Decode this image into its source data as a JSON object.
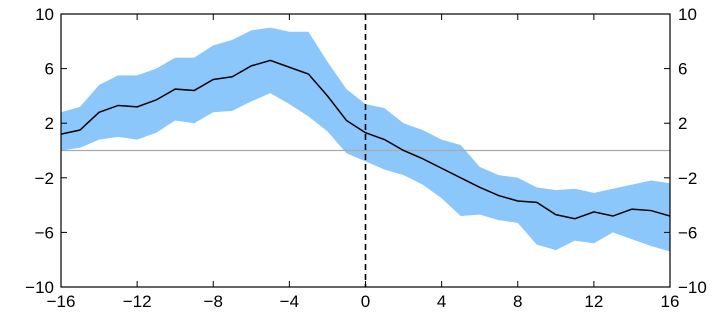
{
  "chart_data": {
    "type": "line",
    "title": "",
    "xlabel": "",
    "ylabel": "",
    "xlim": [
      -16,
      16
    ],
    "ylim": [
      -10,
      10
    ],
    "x_ticks": [
      -16,
      -12,
      -8,
      -4,
      0,
      4,
      8,
      12,
      16
    ],
    "x_tick_labels": [
      "−16",
      "−12",
      "−8",
      "−4",
      "0",
      "4",
      "8",
      "12",
      "16"
    ],
    "y_ticks": [
      10,
      6,
      2,
      -2,
      -6,
      -10
    ],
    "y_tick_labels": [
      "10",
      "6",
      "2",
      "−2",
      "−6",
      "−10"
    ],
    "right_axis_labels": true,
    "grid": false,
    "reference_lines": {
      "horizontal_zero": true,
      "vertical_dashed_at_x": 0
    },
    "x": [
      -16,
      -15,
      -14,
      -13,
      -12,
      -11,
      -10,
      -9,
      -8,
      -7,
      -6,
      -5,
      -4,
      -3,
      -2,
      -1,
      0,
      1,
      2,
      3,
      4,
      5,
      6,
      7,
      8,
      9,
      10,
      11,
      12,
      13,
      14,
      15,
      16
    ],
    "series": [
      {
        "role": "central estimate",
        "color": "#000000",
        "values": [
          1.2,
          1.5,
          2.8,
          3.3,
          3.2,
          3.7,
          4.5,
          4.4,
          5.2,
          5.4,
          6.2,
          6.6,
          6.1,
          5.6,
          4.0,
          2.2,
          1.3,
          0.8,
          0.0,
          -0.6,
          -1.3,
          -2.0,
          -2.7,
          -3.3,
          -3.7,
          -3.8,
          -4.7,
          -5.0,
          -4.5,
          -4.8,
          -4.3,
          -4.4,
          -4.8
        ]
      }
    ],
    "band": {
      "role": "confidence interval",
      "color": "#8cc7fb",
      "upper": [
        2.8,
        3.2,
        4.8,
        5.5,
        5.5,
        6.0,
        6.8,
        6.8,
        7.7,
        8.1,
        8.8,
        9.0,
        8.7,
        8.7,
        6.5,
        4.5,
        3.4,
        3.1,
        2.0,
        1.5,
        0.8,
        0.4,
        -1.2,
        -1.8,
        -2.0,
        -2.7,
        -2.9,
        -2.8,
        -3.1,
        -2.8,
        -2.5,
        -2.2,
        -2.4
      ],
      "lower": [
        0.0,
        0.2,
        0.8,
        1.0,
        0.8,
        1.3,
        2.2,
        2.0,
        2.8,
        2.9,
        3.6,
        4.2,
        3.4,
        2.5,
        1.4,
        -0.2,
        -0.8,
        -1.4,
        -1.8,
        -2.5,
        -3.5,
        -4.8,
        -4.7,
        -5.1,
        -5.3,
        -6.9,
        -7.3,
        -6.6,
        -6.8,
        -6.0,
        -6.5,
        -7.0,
        -7.4
      ]
    },
    "colors": {
      "band": "#8cc7fb",
      "line": "#000000",
      "zero_line": "#a9a9a9",
      "frame": "#000000"
    }
  }
}
